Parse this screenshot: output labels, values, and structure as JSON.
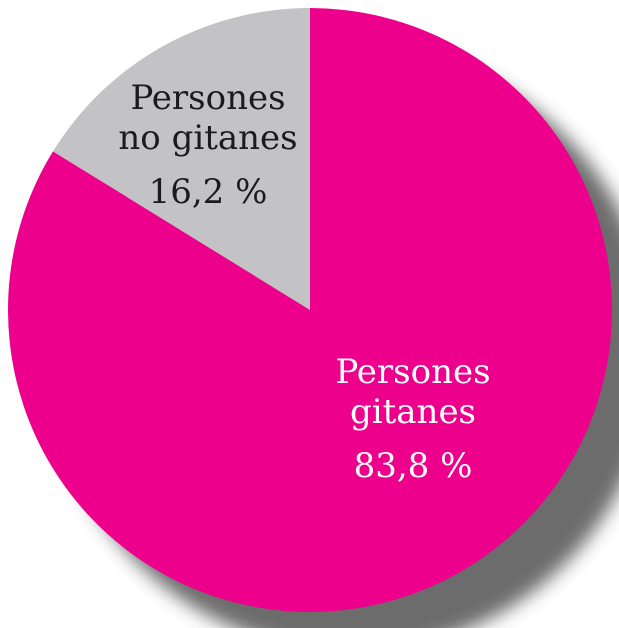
{
  "chart_data": {
    "type": "pie",
    "slices": [
      {
        "label_lines": [
          "Persones",
          "gitanes"
        ],
        "value": 83.8,
        "value_label": "83,8 %",
        "color": "#ec008c",
        "label_color": "#ffffff"
      },
      {
        "label_lines": [
          "Persones",
          "no gitanes"
        ],
        "value": 16.2,
        "value_label": "16,2 %",
        "color": "#c3c3c6",
        "label_color": "#1b1b1b"
      }
    ],
    "start": "12 o'clock",
    "direction": "clockwise",
    "shadow": "bottom-right",
    "legend": "none"
  }
}
